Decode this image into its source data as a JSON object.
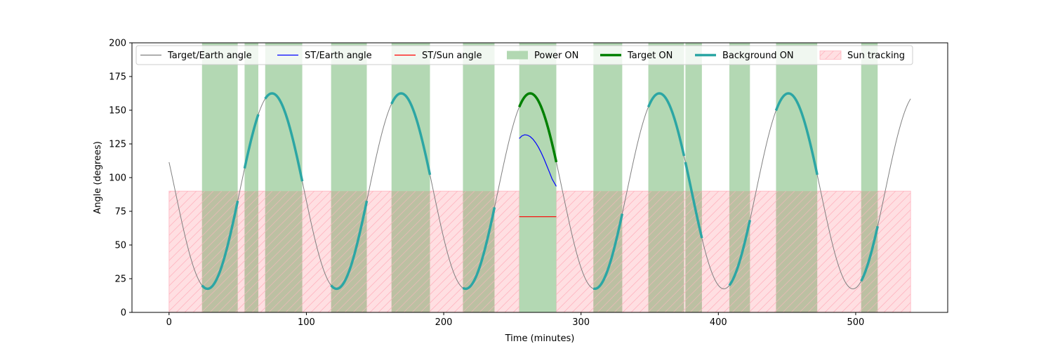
{
  "chart_data": {
    "type": "line",
    "title": "",
    "xlabel": "Time (minutes)",
    "ylabel": "Angle (degrees)",
    "xlim": [
      -27,
      567
    ],
    "ylim": [
      0,
      200
    ],
    "xticks": [
      0,
      100,
      200,
      300,
      400,
      500
    ],
    "yticks": [
      0,
      25,
      50,
      75,
      100,
      125,
      150,
      175,
      200
    ],
    "grid": false,
    "legend_position": "top, single row",
    "colors": {
      "target_earth": "#808080",
      "st_earth": "#0000ff",
      "st_sun": "#ff0000",
      "power_on": "#b2d8b2",
      "target_on": "#008000",
      "background_on": "#2ca6a4",
      "sun_tracking_fill": "#ffdfe2",
      "sun_tracking_hatch": "#ffb6c1"
    },
    "legend": [
      {
        "key": "target_earth",
        "label": "Target/Earth angle",
        "kind": "line"
      },
      {
        "key": "st_earth",
        "label": "ST/Earth angle",
        "kind": "line"
      },
      {
        "key": "st_sun",
        "label": "ST/Sun angle",
        "kind": "line"
      },
      {
        "key": "power_on",
        "label": "Power ON",
        "kind": "patch"
      },
      {
        "key": "target_on",
        "label": "Target ON",
        "kind": "thick"
      },
      {
        "key": "background_on",
        "label": "Background ON",
        "kind": "thick"
      },
      {
        "key": "sun_tracking",
        "label": "Sun tracking",
        "kind": "hatch"
      }
    ],
    "target_earth_angle": {
      "formula": "mean + amplitude * cos(2*pi*(t - peak_time)/period)",
      "mean": 90,
      "amplitude": 72.5,
      "period": 94,
      "peak_time": 75,
      "t_range": [
        0,
        540
      ]
    },
    "power_on_intervals": [
      [
        24,
        50
      ],
      [
        55,
        65
      ],
      [
        70,
        97
      ],
      [
        118,
        144
      ],
      [
        162,
        190
      ],
      [
        214,
        237
      ],
      [
        255,
        282
      ],
      [
        309,
        330
      ],
      [
        349,
        375
      ],
      [
        376,
        388
      ],
      [
        408,
        423
      ],
      [
        442,
        472
      ],
      [
        504,
        516
      ]
    ],
    "target_on_intervals": [
      [
        255,
        282
      ]
    ],
    "background_on_intervals": [
      [
        24,
        50
      ],
      [
        55,
        65
      ],
      [
        70,
        97
      ],
      [
        118,
        144
      ],
      [
        162,
        190
      ],
      [
        214,
        237
      ],
      [
        309,
        330
      ],
      [
        349,
        375
      ],
      [
        376,
        388
      ],
      [
        408,
        423
      ],
      [
        442,
        472
      ],
      [
        504,
        516
      ]
    ],
    "sun_tracking_segments": [
      {
        "x": [
          0,
          255
        ],
        "y": 90
      },
      {
        "x": [
          282,
          540
        ],
        "y": 90
      }
    ],
    "st_earth_angle": {
      "x": [
        255,
        257,
        259,
        261,
        263,
        265,
        267,
        269,
        271,
        273,
        275,
        277,
        279,
        282
      ],
      "y": [
        129,
        131,
        131.8,
        131.5,
        130.4,
        128.5,
        125.8,
        122.5,
        118.5,
        114,
        109,
        104,
        98.8,
        93.5
      ]
    },
    "st_sun_angle": {
      "x": [
        255,
        282
      ],
      "y": [
        71,
        71
      ]
    }
  }
}
